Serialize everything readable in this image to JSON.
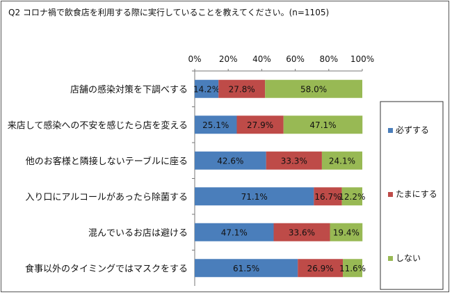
{
  "chart_data": {
    "type": "bar",
    "orientation": "horizontal",
    "stacked": true,
    "title": "Q2 コロナ禍で飲食店を利用する際に実行していることを教えてください。(n=1105)",
    "categories": [
      "店舗の感染対策を下調べする",
      "来店して感染への不安を感じたら店を変える",
      "他のお客様と隣接しないテーブルに座る",
      "入り口にアルコールがあったら除菌する",
      "混んでいるお店は避ける",
      "食事以外のタイミングではマスクをする"
    ],
    "series": [
      {
        "name": "必ずする",
        "values": [
          14.2,
          25.1,
          42.6,
          71.1,
          47.1,
          61.5
        ],
        "color": "#4a7ebb"
      },
      {
        "name": "たまにする",
        "values": [
          27.8,
          27.9,
          33.3,
          16.7,
          33.6,
          26.9
        ],
        "color": "#be4b48"
      },
      {
        "name": "しない",
        "values": [
          58.0,
          47.1,
          24.1,
          12.2,
          19.4,
          11.6
        ],
        "color": "#98b954"
      }
    ],
    "xlim": [
      0,
      100
    ],
    "xticks": [
      "0%",
      "20%",
      "40%",
      "60%",
      "80%",
      "100%"
    ],
    "value_suffix": "%",
    "legend_position": "right",
    "grid": false
  }
}
